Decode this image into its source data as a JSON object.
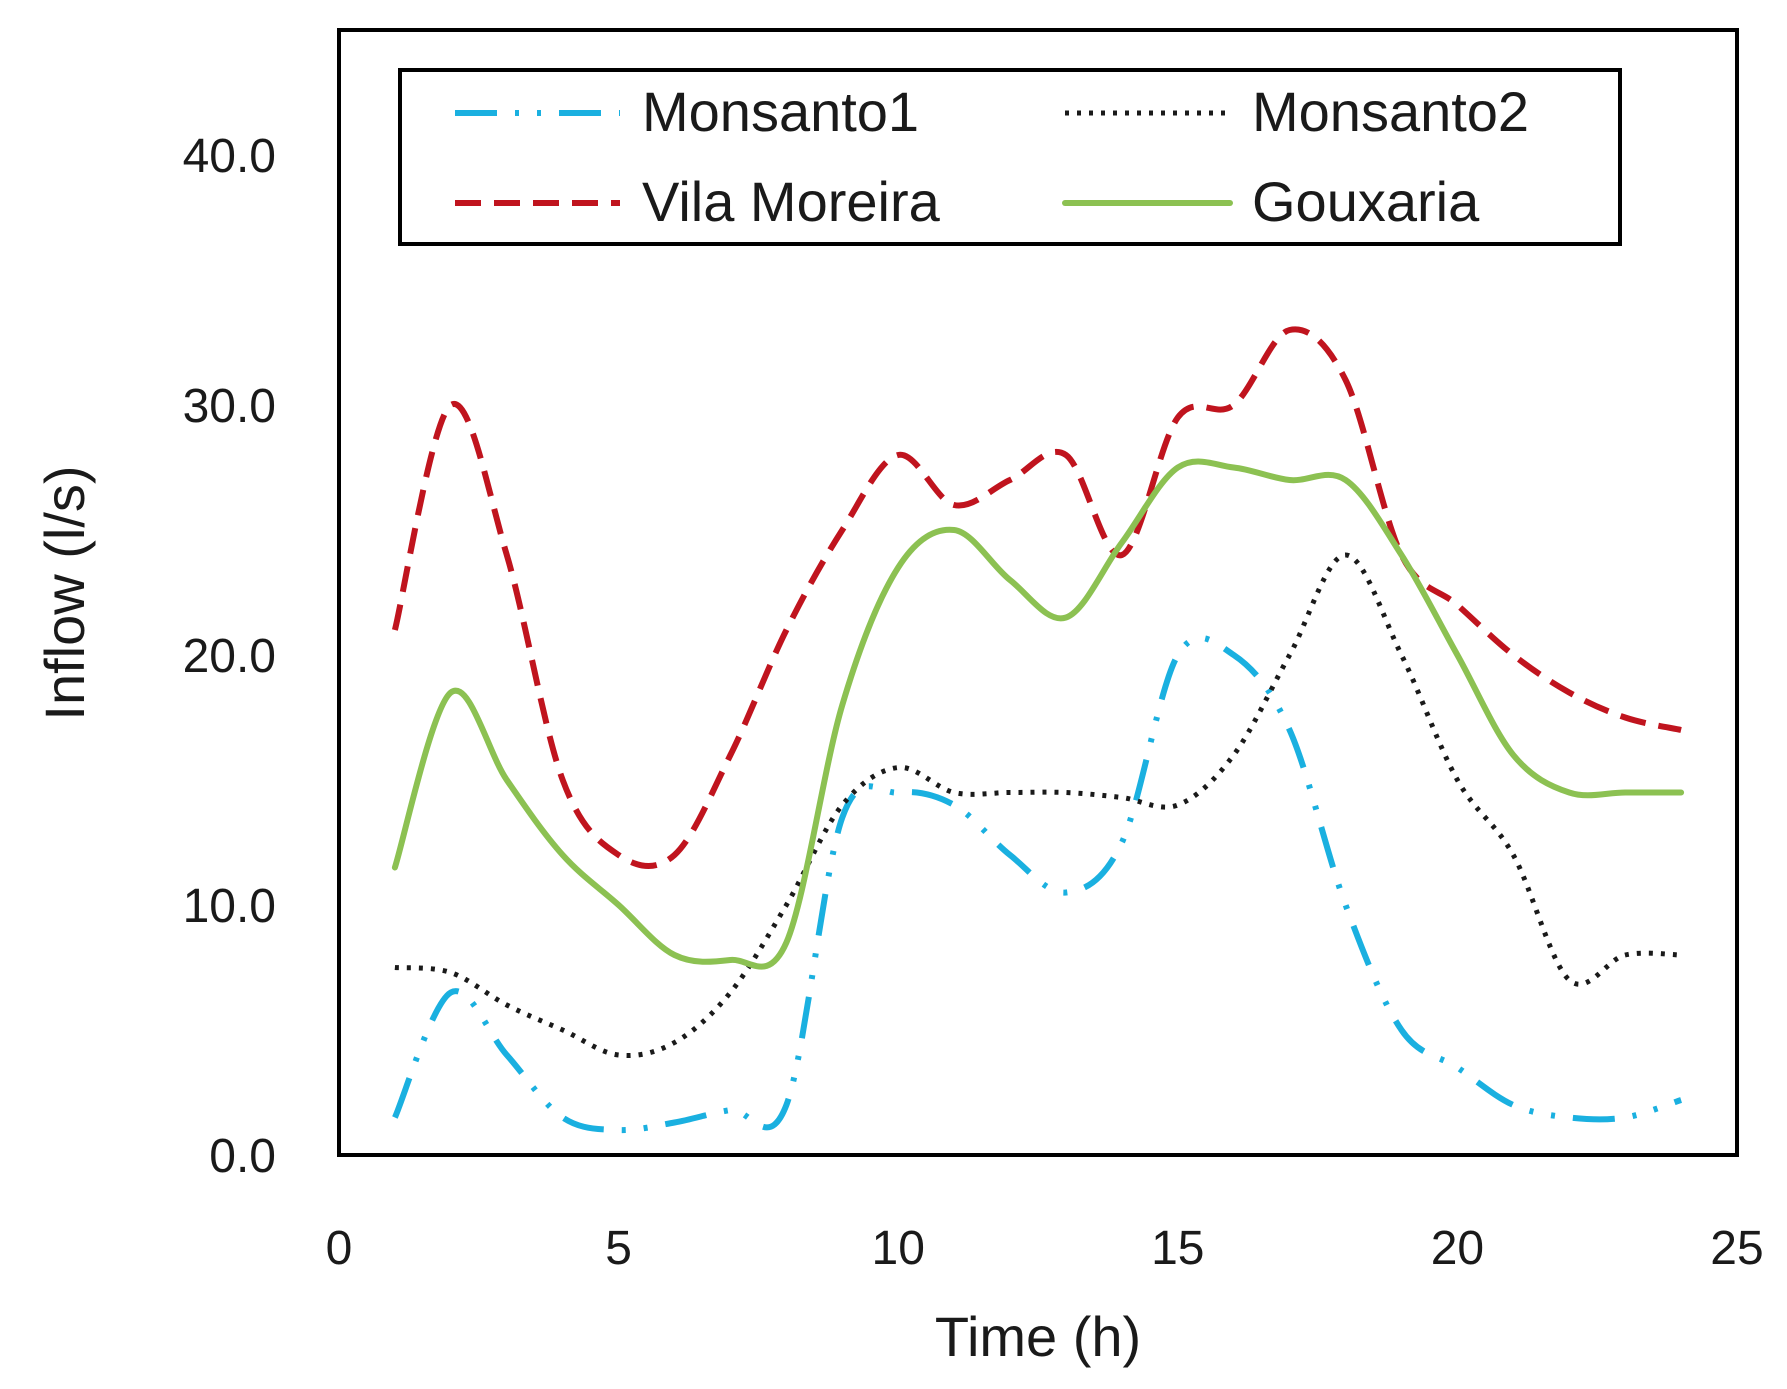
{
  "chart_data": {
    "type": "line",
    "title": "",
    "xlabel": "Time (h)",
    "ylabel": "Inflow (l/s)",
    "xlim": [
      0,
      25
    ],
    "ylim": [
      0,
      45
    ],
    "x_ticks": [
      0,
      5,
      10,
      15,
      20,
      25
    ],
    "x_tick_labels": [
      "0",
      "5",
      "10",
      "15",
      "20",
      "25"
    ],
    "y_ticks": [
      0,
      10,
      20,
      30,
      40
    ],
    "y_tick_labels": [
      "0.0",
      "10.0",
      "20.0",
      "30.0",
      "40.0"
    ],
    "grid": false,
    "legend_position": "top",
    "x": [
      1,
      2,
      3,
      4,
      5,
      6,
      7,
      8,
      9,
      10,
      11,
      12,
      13,
      14,
      15,
      16,
      17,
      18,
      19,
      20,
      21,
      22,
      23,
      24
    ],
    "series": [
      {
        "name": "Monsanto1",
        "color": "#1ab0e0",
        "style": "dash-dot",
        "values": [
          1.5,
          6.5,
          4.0,
          1.5,
          1.0,
          1.3,
          1.8,
          2.0,
          13.5,
          14.5,
          14.0,
          12.0,
          10.5,
          12.5,
          20.0,
          20.0,
          17.0,
          10.0,
          5.0,
          3.5,
          2.0,
          1.5,
          1.5,
          2.2
        ]
      },
      {
        "name": "Monsanto2",
        "color": "#1a1a1a",
        "style": "dotted",
        "values": [
          7.5,
          7.3,
          6.0,
          5.0,
          4.0,
          4.5,
          6.5,
          10.0,
          14.0,
          15.5,
          14.5,
          14.5,
          14.5,
          14.3,
          14.0,
          16.0,
          20.0,
          24.0,
          20.0,
          15.0,
          12.0,
          7.0,
          8.0,
          8.0
        ]
      },
      {
        "name": "Vila Moreira",
        "color": "#c0141e",
        "style": "dashed",
        "values": [
          21.0,
          30.0,
          24.0,
          15.0,
          12.0,
          12.0,
          16.0,
          21.0,
          25.0,
          28.0,
          26.0,
          27.0,
          28.0,
          24.0,
          29.5,
          30.0,
          33.0,
          31.0,
          24.0,
          22.0,
          20.0,
          18.5,
          17.5,
          17.0
        ]
      },
      {
        "name": "Gouxaria",
        "color": "#8cc152",
        "style": "solid",
        "values": [
          11.5,
          18.5,
          15.0,
          12.0,
          10.0,
          8.0,
          7.8,
          8.5,
          18.0,
          23.5,
          25.0,
          23.0,
          21.5,
          24.5,
          27.5,
          27.5,
          27.0,
          27.0,
          24.0,
          20.0,
          16.0,
          14.5,
          14.5,
          14.5
        ]
      }
    ]
  }
}
